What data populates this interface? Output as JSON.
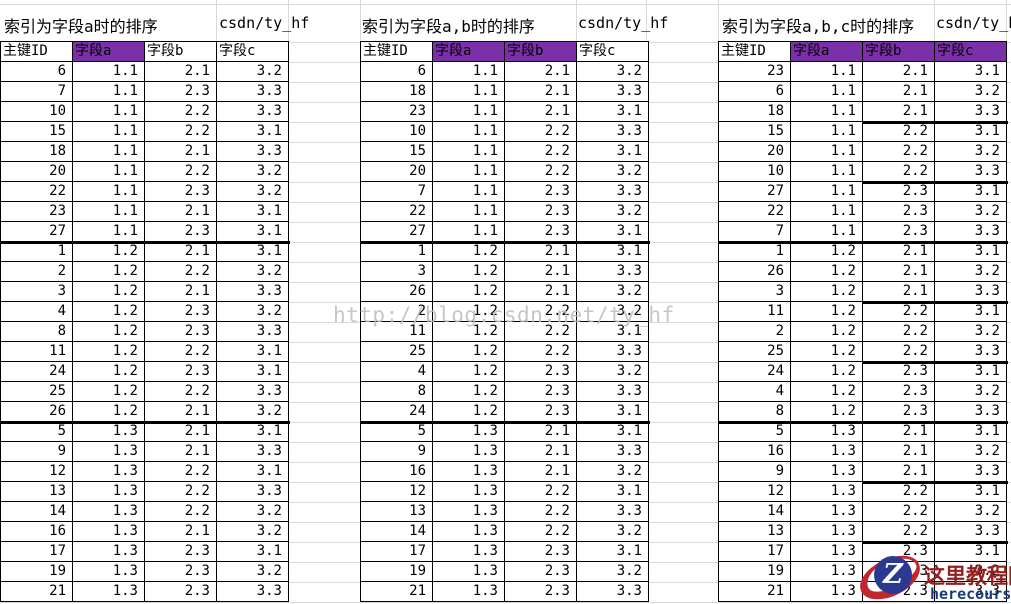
{
  "sheet": {
    "columns": [
      "主键ID",
      "字段a",
      "字段b",
      "字段c"
    ],
    "tables": [
      {
        "title": "索引为字段a时的排序",
        "credit": "csdn/ty_hf",
        "highlighted_columns": [
          "字段a"
        ],
        "rows": [
          [
            "6",
            "1.1",
            "2.1",
            "3.2"
          ],
          [
            "7",
            "1.1",
            "2.3",
            "3.3"
          ],
          [
            "10",
            "1.1",
            "2.2",
            "3.3"
          ],
          [
            "15",
            "1.1",
            "2.2",
            "3.1"
          ],
          [
            "18",
            "1.1",
            "2.1",
            "3.3"
          ],
          [
            "20",
            "1.1",
            "2.2",
            "3.2"
          ],
          [
            "22",
            "1.1",
            "2.3",
            "3.2"
          ],
          [
            "23",
            "1.1",
            "2.1",
            "3.1"
          ],
          [
            "27",
            "1.1",
            "2.3",
            "3.1"
          ],
          [
            "1",
            "1.2",
            "2.1",
            "3.1"
          ],
          [
            "2",
            "1.2",
            "2.2",
            "3.2"
          ],
          [
            "3",
            "1.2",
            "2.1",
            "3.3"
          ],
          [
            "4",
            "1.2",
            "2.3",
            "3.2"
          ],
          [
            "8",
            "1.2",
            "2.3",
            "3.3"
          ],
          [
            "11",
            "1.2",
            "2.2",
            "3.1"
          ],
          [
            "24",
            "1.2",
            "2.3",
            "3.1"
          ],
          [
            "25",
            "1.2",
            "2.2",
            "3.3"
          ],
          [
            "26",
            "1.2",
            "2.1",
            "3.2"
          ],
          [
            "5",
            "1.3",
            "2.1",
            "3.1"
          ],
          [
            "9",
            "1.3",
            "2.1",
            "3.3"
          ],
          [
            "12",
            "1.3",
            "2.2",
            "3.1"
          ],
          [
            "13",
            "1.3",
            "2.2",
            "3.3"
          ],
          [
            "14",
            "1.3",
            "2.2",
            "3.2"
          ],
          [
            "16",
            "1.3",
            "2.1",
            "3.2"
          ],
          [
            "17",
            "1.3",
            "2.3",
            "3.1"
          ],
          [
            "19",
            "1.3",
            "2.3",
            "3.2"
          ],
          [
            "21",
            "1.3",
            "2.3",
            "3.3"
          ]
        ],
        "group_breaks_after": [
          9,
          18
        ],
        "subgroup_breaks_after": []
      },
      {
        "title": "索引为字段a,b时的排序",
        "credit": "csdn/ty_hf",
        "highlighted_columns": [
          "字段a",
          "字段b"
        ],
        "rows": [
          [
            "6",
            "1.1",
            "2.1",
            "3.2"
          ],
          [
            "18",
            "1.1",
            "2.1",
            "3.3"
          ],
          [
            "23",
            "1.1",
            "2.1",
            "3.1"
          ],
          [
            "10",
            "1.1",
            "2.2",
            "3.3"
          ],
          [
            "15",
            "1.1",
            "2.2",
            "3.1"
          ],
          [
            "20",
            "1.1",
            "2.2",
            "3.2"
          ],
          [
            "7",
            "1.1",
            "2.3",
            "3.3"
          ],
          [
            "22",
            "1.1",
            "2.3",
            "3.2"
          ],
          [
            "27",
            "1.1",
            "2.3",
            "3.1"
          ],
          [
            "1",
            "1.2",
            "2.1",
            "3.1"
          ],
          [
            "3",
            "1.2",
            "2.1",
            "3.3"
          ],
          [
            "26",
            "1.2",
            "2.1",
            "3.2"
          ],
          [
            "2",
            "1.2",
            "2.2",
            "3.2"
          ],
          [
            "11",
            "1.2",
            "2.2",
            "3.1"
          ],
          [
            "25",
            "1.2",
            "2.2",
            "3.3"
          ],
          [
            "4",
            "1.2",
            "2.3",
            "3.2"
          ],
          [
            "8",
            "1.2",
            "2.3",
            "3.3"
          ],
          [
            "24",
            "1.2",
            "2.3",
            "3.1"
          ],
          [
            "5",
            "1.3",
            "2.1",
            "3.1"
          ],
          [
            "9",
            "1.3",
            "2.1",
            "3.3"
          ],
          [
            "16",
            "1.3",
            "2.1",
            "3.2"
          ],
          [
            "12",
            "1.3",
            "2.2",
            "3.1"
          ],
          [
            "13",
            "1.3",
            "2.2",
            "3.3"
          ],
          [
            "14",
            "1.3",
            "2.2",
            "3.2"
          ],
          [
            "17",
            "1.3",
            "2.3",
            "3.1"
          ],
          [
            "19",
            "1.3",
            "2.3",
            "3.2"
          ],
          [
            "21",
            "1.3",
            "2.3",
            "3.3"
          ]
        ],
        "group_breaks_after": [
          9,
          18
        ],
        "subgroup_breaks_after": []
      },
      {
        "title": "索引为字段a,b,c时的排序",
        "credit": "csdn/ty_hf",
        "highlighted_columns": [
          "字段a",
          "字段b",
          "字段c"
        ],
        "rows": [
          [
            "23",
            "1.1",
            "2.1",
            "3.1"
          ],
          [
            "6",
            "1.1",
            "2.1",
            "3.2"
          ],
          [
            "18",
            "1.1",
            "2.1",
            "3.3"
          ],
          [
            "15",
            "1.1",
            "2.2",
            "3.1"
          ],
          [
            "20",
            "1.1",
            "2.2",
            "3.2"
          ],
          [
            "10",
            "1.1",
            "2.2",
            "3.3"
          ],
          [
            "27",
            "1.1",
            "2.3",
            "3.1"
          ],
          [
            "22",
            "1.1",
            "2.3",
            "3.2"
          ],
          [
            "7",
            "1.1",
            "2.3",
            "3.3"
          ],
          [
            "1",
            "1.2",
            "2.1",
            "3.1"
          ],
          [
            "26",
            "1.2",
            "2.1",
            "3.2"
          ],
          [
            "3",
            "1.2",
            "2.1",
            "3.3"
          ],
          [
            "11",
            "1.2",
            "2.2",
            "3.1"
          ],
          [
            "2",
            "1.2",
            "2.2",
            "3.2"
          ],
          [
            "25",
            "1.2",
            "2.2",
            "3.3"
          ],
          [
            "24",
            "1.2",
            "2.3",
            "3.1"
          ],
          [
            "4",
            "1.2",
            "2.3",
            "3.2"
          ],
          [
            "8",
            "1.2",
            "2.3",
            "3.3"
          ],
          [
            "5",
            "1.3",
            "2.1",
            "3.1"
          ],
          [
            "16",
            "1.3",
            "2.1",
            "3.2"
          ],
          [
            "9",
            "1.3",
            "2.1",
            "3.3"
          ],
          [
            "12",
            "1.3",
            "2.2",
            "3.1"
          ],
          [
            "14",
            "1.3",
            "2.2",
            "3.2"
          ],
          [
            "13",
            "1.3",
            "2.2",
            "3.3"
          ],
          [
            "17",
            "1.3",
            "2.3",
            "3.1"
          ],
          [
            "19",
            "1.3",
            "2.3",
            "3.2"
          ],
          [
            "21",
            "1.3",
            "2.3",
            "3.3"
          ]
        ],
        "group_breaks_after": [
          9,
          18
        ],
        "subgroup_breaks_after": [
          3,
          6,
          12,
          15,
          21,
          24
        ]
      }
    ]
  },
  "watermark": {
    "text": "http://blog.csdn.net/ty_hf"
  },
  "logo": {
    "monogram": "Z",
    "site_name": "这里教程网",
    "site_domain": "herecours.com"
  },
  "colors": {
    "header_highlight": "#7B2FA8",
    "table_border": "#000000",
    "sheet_gridline": "#D9D9D9",
    "watermark_gray": "#BDBDBD",
    "logo_red": "#C2272D",
    "logo_navy": "#2B3990",
    "logo_name_red": "#941F1F",
    "logo_domain_navy": "#1A3B7A"
  }
}
